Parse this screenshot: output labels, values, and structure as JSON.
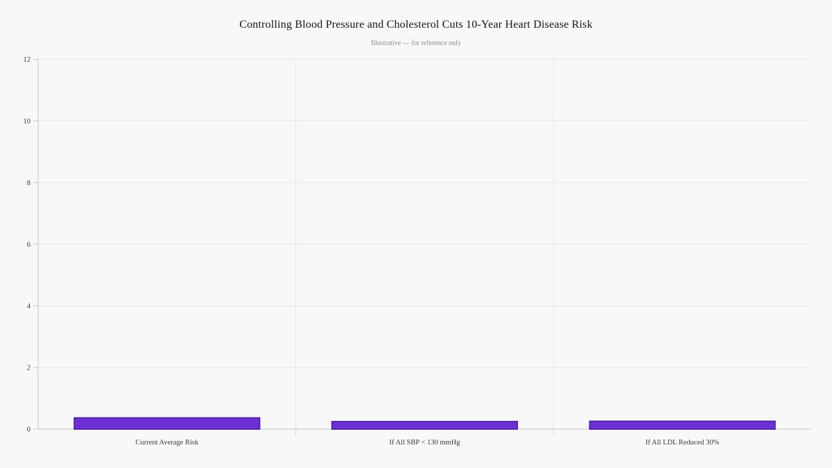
{
  "colors": {
    "background": "#f8f8f8",
    "gridline": "#e4e4e4",
    "axis_line": "#c9c9c9",
    "bar_fill": "#6c30d4",
    "bar_edge": "#4a1d9e",
    "title_text": "#141414",
    "subtitle_text": "#8a8a8a",
    "tick_text": "#3a3a3a"
  },
  "chart_data": {
    "type": "bar",
    "title": "Controlling Blood Pressure and Cholesterol Cuts 10-Year Heart Disease Risk",
    "subtitle": "Illustrative — for reference only",
    "categories": [
      "Current Average Risk",
      "If All SBP < 130 mmHg",
      "If All LDL Reduced 30%"
    ],
    "values": [
      0.37,
      0.25,
      0.26
    ],
    "xlabel": "",
    "ylabel": "",
    "ylim": [
      0,
      12
    ],
    "yticks": [
      0,
      2,
      4,
      6,
      8,
      10,
      12
    ],
    "grid": true,
    "legend_position": "none",
    "bar_width_ratio": 0.72
  }
}
